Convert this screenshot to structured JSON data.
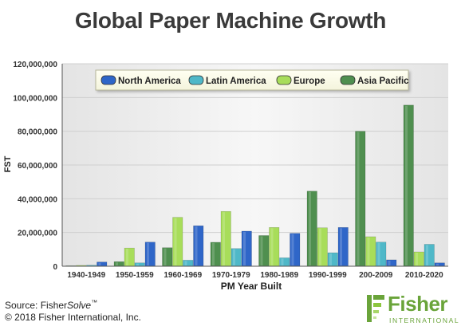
{
  "chart_data": {
    "type": "bar",
    "title": "Global Paper Machine Growth",
    "xlabel": "PM Year Built",
    "ylabel": "FST",
    "ylim": [
      0,
      120000000
    ],
    "yticks": [
      0,
      20000000,
      40000000,
      60000000,
      80000000,
      100000000,
      120000000
    ],
    "ytick_labels": [
      "0",
      "20,000,000",
      "40,000,000",
      "60,000,000",
      "80,000,000",
      "100,000,000",
      "120,000,000"
    ],
    "grid": true,
    "legend_position": "top",
    "categories": [
      "1940-1949",
      "1950-1959",
      "1960-1969",
      "1970-1979",
      "1980-1989",
      "1990-1999",
      "200-2009",
      "2010-2020"
    ],
    "series": [
      {
        "name": "Asia Pacific",
        "color": "#4f8f4f",
        "values": [
          300000,
          2700000,
          11000000,
          14200000,
          18200000,
          44500000,
          80000000,
          95500000
        ]
      },
      {
        "name": "Europe",
        "color": "#a8dd5a",
        "values": [
          500000,
          10800000,
          29000000,
          32500000,
          23000000,
          22800000,
          17500000,
          8500000
        ]
      },
      {
        "name": "Latin America",
        "color": "#4fb8c8",
        "values": [
          600000,
          2000000,
          3600000,
          10500000,
          5000000,
          8000000,
          14300000,
          13000000
        ]
      },
      {
        "name": "North America",
        "color": "#2f66c8",
        "values": [
          2500000,
          14300000,
          24000000,
          20800000,
          19500000,
          23000000,
          3800000,
          2000000
        ]
      }
    ],
    "legend_order": [
      "North America",
      "Latin America",
      "Europe",
      "Asia Pacific"
    ]
  },
  "footer": {
    "source_prefix": "Source: Fisher",
    "source_italic": "Solve",
    "source_tm": "™",
    "copyright": "© 2018 Fisher International, Inc."
  },
  "logo": {
    "word": "Fisher",
    "sub": "INTERNATIONAL"
  }
}
